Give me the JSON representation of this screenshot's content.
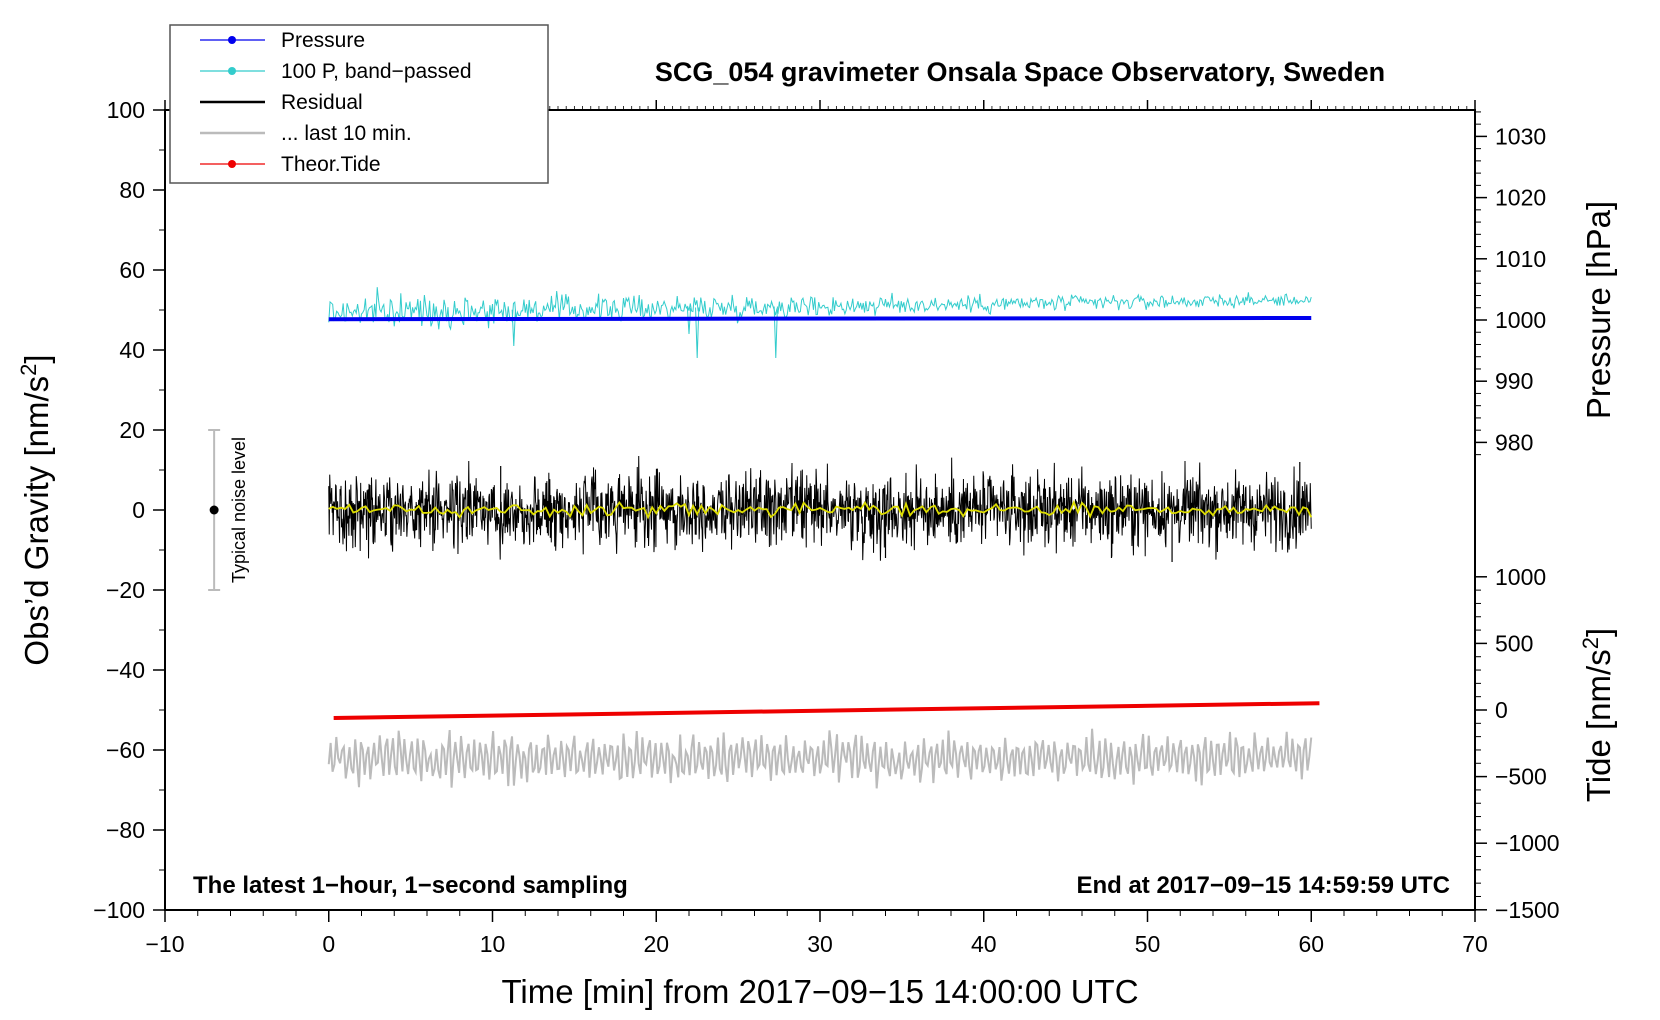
{
  "chart_data": {
    "type": "line",
    "title": "SCG_054 gravimeter Onsala Space Observatory, Sweden",
    "xlabel_prefix": "Time [min] from ",
    "xlabel_time": "2017−09−15 14:00:00 UTC",
    "ylabel_left": "Obs’d Gravity [nm/s",
    "ylabel_right_pressure": "Pressure [hPa]",
    "ylabel_right_tide": "Tide [nm/s",
    "units_superscript": "2",
    "units_close": "]",
    "xlim": [
      -10,
      70
    ],
    "ylim": [
      -100,
      100
    ],
    "x_ticks": [
      "−10",
      "0",
      "10",
      "20",
      "30",
      "40",
      "50",
      "60",
      "70"
    ],
    "x_tick_values": [
      -10,
      0,
      10,
      20,
      30,
      40,
      50,
      60,
      70
    ],
    "y_ticks": [
      "100",
      "80",
      "60",
      "40",
      "20",
      "0",
      "−20",
      "−40",
      "−60",
      "−80",
      "−100"
    ],
    "y_tick_values": [
      100,
      80,
      60,
      40,
      20,
      0,
      -20,
      -40,
      -60,
      -80,
      -100
    ],
    "pressure_axis": {
      "ticks": [
        "1030",
        "1020",
        "1010",
        "1000",
        "990",
        "980"
      ],
      "values": [
        1030,
        1020,
        1010,
        1000,
        990,
        980
      ],
      "gravity_at_1000": 47.5,
      "gravity_per_hpa": 1.53
    },
    "tide_axis": {
      "ticks": [
        "1000",
        "500",
        "0",
        "−500",
        "−1000",
        "−1500"
      ],
      "values": [
        1000,
        500,
        0,
        -500,
        -1000,
        -1500
      ],
      "gravity_at_0": -50,
      "gravity_per_nms2": 0.0333
    },
    "annotations": {
      "left": "The latest 1−hour, 1−second sampling",
      "right": "End at 2017−09−15 14:59:59 UTC"
    },
    "noise_bar": {
      "label": "Typical noise level",
      "x": -7,
      "center": 0,
      "low": -20,
      "high": 20
    },
    "legend": [
      {
        "label": "Pressure",
        "color": "#0000ee",
        "marker": true
      },
      {
        "label": "100 P, band−passed",
        "color": "#33cccc",
        "marker": true
      },
      {
        "label": "Residual",
        "color": "#000000",
        "marker": false
      },
      {
        "label": "... last 10 min.",
        "color": "#bbbbbb",
        "marker": false
      },
      {
        "label": "Theor.Tide",
        "color": "#ee0000",
        "marker": true
      }
    ],
    "series": [
      {
        "name": "Pressure",
        "color": "#0000ee",
        "x_range": [
          0,
          60
        ],
        "y_start": 47.7,
        "y_end": 48.0,
        "kind": "trend"
      },
      {
        "name": "100 P, band-passed",
        "color": "#33cccc",
        "x_range": [
          0,
          60
        ],
        "y_start": 49.5,
        "y_end": 52.5,
        "amplitude_start": 2.0,
        "amplitude_end": 0.7,
        "spikes": [
          {
            "x": 22.5,
            "y": 38
          },
          {
            "x": 27.3,
            "y": 38
          },
          {
            "x": 11.3,
            "y": 41
          },
          {
            "x": 22.0,
            "y": 44
          }
        ],
        "kind": "noise"
      },
      {
        "name": "Residual",
        "color": "#000000",
        "x_range": [
          0,
          60
        ],
        "y_center": 0,
        "amplitude": 4.5,
        "extremes": [
          {
            "x": 10.5,
            "y": 11
          },
          {
            "x": 34.0,
            "y": -12
          },
          {
            "x": 47.8,
            "y": -12
          },
          {
            "x": 51.5,
            "y": -13
          },
          {
            "x": 59.3,
            "y": 12
          }
        ],
        "kind": "noise"
      },
      {
        "name": "Residual (smoothed)",
        "color": "#dddd00",
        "x_range": [
          0,
          60
        ],
        "y_center": 0,
        "amplitude": 0.8,
        "kind": "noise"
      },
      {
        "name": "Theor.Tide",
        "color": "#ee0000",
        "x_range": [
          0.3,
          60.5
        ],
        "y_start": -52,
        "y_end": -48.3,
        "kind": "trend"
      },
      {
        "name": "... last 10 min.",
        "color": "#bbbbbb",
        "x_range": [
          0,
          60
        ],
        "y_center": -62,
        "amplitude": 5,
        "kind": "wave"
      }
    ]
  }
}
